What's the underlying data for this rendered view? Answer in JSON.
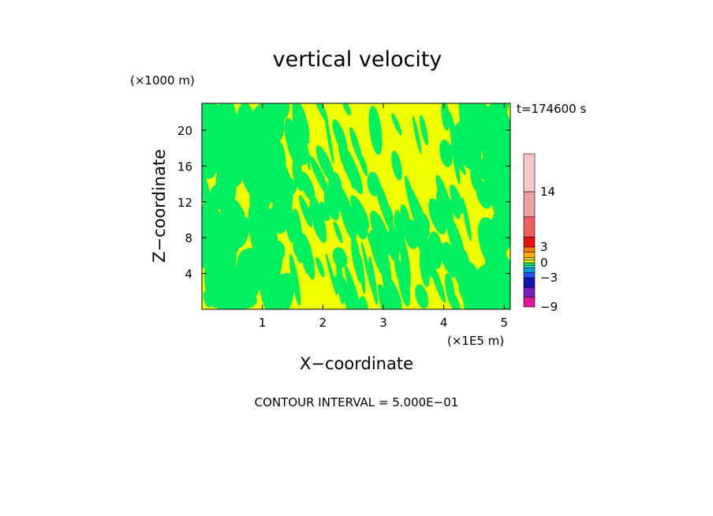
{
  "chart_data": {
    "type": "heatmap",
    "title": "vertical velocity",
    "xlabel": "X−coordinate",
    "ylabel": "Z−coordinate",
    "x_unit": "(×1E5 m)",
    "y_unit": "(×1000 m)",
    "time_label": "t=174600 s",
    "footer": "CONTOUR INTERVAL = 5.000E−01",
    "xlim": [
      0,
      5.1
    ],
    "ylim": [
      0,
      23
    ],
    "x_ticks": [
      1,
      2,
      3,
      4,
      5
    ],
    "x_tick_labels": [
      "1",
      "2",
      "3",
      "4",
      "5"
    ],
    "y_ticks": [
      4,
      8,
      12,
      16,
      20
    ],
    "y_tick_labels": [
      "4",
      "8",
      "12",
      "16",
      "20"
    ],
    "colorbar": {
      "labels": [
        {
          "value": 14,
          "text": "14"
        },
        {
          "value": 3,
          "text": "3"
        },
        {
          "value": 0,
          "text": "0"
        },
        {
          "value": -3,
          "text": "−3"
        },
        {
          "value": -9,
          "text": "−9"
        }
      ],
      "levels": [
        {
          "lo": -9,
          "hi": -7,
          "color": "#e0189c"
        },
        {
          "lo": -7,
          "hi": -5,
          "color": "#7a1cc4"
        },
        {
          "lo": -5,
          "hi": -3,
          "color": "#1414b0"
        },
        {
          "lo": -3,
          "hi": -2,
          "color": "#2050ff"
        },
        {
          "lo": -2,
          "hi": -1,
          "color": "#00a0e0"
        },
        {
          "lo": -1,
          "hi": -0.5,
          "color": "#20d8c8"
        },
        {
          "lo": -0.5,
          "hi": 0,
          "color": "#00f060"
        },
        {
          "lo": 0,
          "hi": 0.5,
          "color": "#f0ff00"
        },
        {
          "lo": 0.5,
          "hi": 1,
          "color": "#ffe000"
        },
        {
          "lo": 1,
          "hi": 2,
          "color": "#ffb000"
        },
        {
          "lo": 2,
          "hi": 3,
          "color": "#ff8000"
        },
        {
          "lo": 3,
          "hi": 5,
          "color": "#e81010"
        },
        {
          "lo": 5,
          "hi": 9,
          "color": "#f06060"
        },
        {
          "lo": 9,
          "hi": 14,
          "color": "#f0a0a0"
        },
        {
          "lo": 14,
          "hi": 20,
          "color": "#f8c8c8"
        }
      ]
    },
    "field": {
      "description": "w field dominated by two contour levels",
      "positive_color": "#f0ff00",
      "negative_color": "#00f060"
    }
  }
}
